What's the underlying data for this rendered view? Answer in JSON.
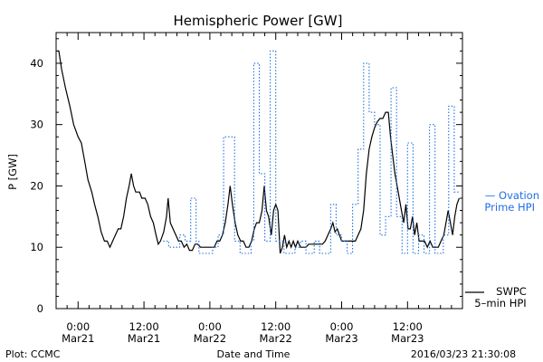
{
  "chart_data": {
    "type": "line",
    "title": "Hemispheric Power [GW]",
    "xlabel": "Date and Time",
    "ylabel": "P [GW]",
    "ylim": [
      0,
      45
    ],
    "yticks": [
      0,
      10,
      20,
      30,
      40
    ],
    "xlim": [
      -4,
      70
    ],
    "xaxis_unit": "hours since 2016-03-21 00:00 UT",
    "xticks": [
      {
        "x": 0,
        "line1": "0:00",
        "line2": "Mar21"
      },
      {
        "x": 12,
        "line1": "12:00",
        "line2": "Mar21"
      },
      {
        "x": 24,
        "line1": "0:00",
        "line2": "Mar22"
      },
      {
        "x": 36,
        "line1": "12:00",
        "line2": "Mar22"
      },
      {
        "x": 48,
        "line1": "0:00",
        "line2": "Mar23"
      },
      {
        "x": 60,
        "line1": "12:00",
        "line2": "Mar23"
      }
    ],
    "series": [
      {
        "name": "SWPC 5-min HPI",
        "color": "#000000",
        "style": "solid",
        "points": [
          [
            -3.8,
            42
          ],
          [
            -3.5,
            42
          ],
          [
            -3,
            39
          ],
          [
            -2.3,
            36
          ],
          [
            -1.5,
            33
          ],
          [
            -0.8,
            30
          ],
          [
            0,
            28
          ],
          [
            0.6,
            27
          ],
          [
            1.2,
            24
          ],
          [
            1.8,
            21
          ],
          [
            2.5,
            19
          ],
          [
            3,
            17
          ],
          [
            3.6,
            15
          ],
          [
            4.2,
            12.5
          ],
          [
            4.8,
            11
          ],
          [
            5.3,
            11
          ],
          [
            5.8,
            10
          ],
          [
            6.3,
            11
          ],
          [
            6.8,
            12
          ],
          [
            7.3,
            13
          ],
          [
            7.8,
            13
          ],
          [
            8.3,
            15
          ],
          [
            8.8,
            18
          ],
          [
            9.3,
            20
          ],
          [
            9.7,
            22
          ],
          [
            10.1,
            20
          ],
          [
            10.5,
            19
          ],
          [
            11.2,
            19
          ],
          [
            11.6,
            18
          ],
          [
            12.2,
            18
          ],
          [
            12.7,
            17
          ],
          [
            13.2,
            15
          ],
          [
            13.7,
            14
          ],
          [
            14.2,
            12
          ],
          [
            14.6,
            10.5
          ],
          [
            15,
            11
          ],
          [
            15.6,
            12.5
          ],
          [
            16.1,
            15
          ],
          [
            16.4,
            18
          ],
          [
            16.8,
            14
          ],
          [
            17.3,
            13
          ],
          [
            17.8,
            12
          ],
          [
            18.3,
            11
          ],
          [
            18.8,
            11
          ],
          [
            19.3,
            10
          ],
          [
            19.8,
            10.5
          ],
          [
            20.3,
            9.5
          ],
          [
            20.8,
            9.5
          ],
          [
            21.3,
            10.5
          ],
          [
            21.8,
            10.5
          ],
          [
            22.3,
            10
          ],
          [
            22.8,
            10
          ],
          [
            23.3,
            10
          ],
          [
            23.8,
            10
          ],
          [
            24.3,
            10
          ],
          [
            24.8,
            10
          ],
          [
            25.3,
            11
          ],
          [
            25.8,
            11
          ],
          [
            26.3,
            12
          ],
          [
            26.8,
            14
          ],
          [
            27.3,
            17
          ],
          [
            27.7,
            20
          ],
          [
            28.1,
            17
          ],
          [
            28.6,
            14
          ],
          [
            29.1,
            12
          ],
          [
            29.6,
            11
          ],
          [
            30.1,
            11
          ],
          [
            30.6,
            10
          ],
          [
            31.1,
            10
          ],
          [
            31.6,
            11
          ],
          [
            32.1,
            13
          ],
          [
            32.5,
            14
          ],
          [
            33,
            14
          ],
          [
            33.5,
            16
          ],
          [
            33.9,
            20
          ],
          [
            34.3,
            16
          ],
          [
            34.7,
            15
          ],
          [
            35.2,
            12
          ],
          [
            35.6,
            16
          ],
          [
            36,
            17
          ],
          [
            36.4,
            16
          ],
          [
            36.8,
            9
          ],
          [
            37.2,
            10
          ],
          [
            37.6,
            12
          ],
          [
            38,
            10
          ],
          [
            38.4,
            11
          ],
          [
            38.8,
            10
          ],
          [
            39.2,
            11
          ],
          [
            39.6,
            10
          ],
          [
            40,
            11
          ],
          [
            40.5,
            10
          ],
          [
            41,
            10
          ],
          [
            41.5,
            10
          ],
          [
            42,
            10.5
          ],
          [
            42.5,
            10.5
          ],
          [
            43,
            10.5
          ],
          [
            43.5,
            10.5
          ],
          [
            44,
            10.5
          ],
          [
            44.5,
            10.5
          ],
          [
            45,
            11
          ],
          [
            45.5,
            12
          ],
          [
            46,
            13
          ],
          [
            46.4,
            14
          ],
          [
            46.8,
            12.5
          ],
          [
            47.2,
            13
          ],
          [
            47.6,
            12
          ],
          [
            48,
            11
          ],
          [
            48.5,
            11
          ],
          [
            49,
            11
          ],
          [
            49.5,
            11
          ],
          [
            50,
            11
          ],
          [
            50.5,
            11
          ],
          [
            51,
            12
          ],
          [
            51.5,
            13
          ],
          [
            52,
            16
          ],
          [
            52.5,
            22
          ],
          [
            53,
            26
          ],
          [
            53.5,
            28
          ],
          [
            54,
            29.5
          ],
          [
            54.5,
            30.5
          ],
          [
            55,
            31
          ],
          [
            55.5,
            31
          ],
          [
            56,
            32
          ],
          [
            56.5,
            32
          ],
          [
            56.9,
            28
          ],
          [
            57.3,
            25
          ],
          [
            57.7,
            22
          ],
          [
            58.1,
            20
          ],
          [
            58.5,
            18
          ],
          [
            58.9,
            16
          ],
          [
            59.3,
            14
          ],
          [
            59.7,
            17
          ],
          [
            60.1,
            13
          ],
          [
            60.5,
            13
          ],
          [
            60.9,
            15
          ],
          [
            61.3,
            12
          ],
          [
            61.7,
            14
          ],
          [
            62.1,
            11
          ],
          [
            62.6,
            11
          ],
          [
            63.1,
            11
          ],
          [
            63.6,
            10
          ],
          [
            64.1,
            11
          ],
          [
            64.6,
            10
          ],
          [
            65.1,
            10
          ],
          [
            65.6,
            10
          ],
          [
            66.1,
            11
          ],
          [
            66.6,
            12
          ],
          [
            67,
            14
          ],
          [
            67.4,
            16
          ],
          [
            67.8,
            14
          ],
          [
            68.2,
            12
          ],
          [
            68.6,
            15
          ],
          [
            69,
            17
          ],
          [
            69.4,
            18
          ]
        ]
      },
      {
        "name": "Ovation Prime HPI",
        "color": "#1f6fe0",
        "style": "dotted-step",
        "points": [
          [
            15.5,
            11
          ],
          [
            16.5,
            11
          ],
          [
            16.5,
            10
          ],
          [
            18.5,
            10
          ],
          [
            18.5,
            12
          ],
          [
            19.5,
            12
          ],
          [
            19.5,
            11
          ],
          [
            20.5,
            11
          ],
          [
            20.5,
            18
          ],
          [
            21.5,
            18
          ],
          [
            21.5,
            11
          ],
          [
            22,
            11
          ],
          [
            22,
            9
          ],
          [
            24.5,
            9
          ],
          [
            24.5,
            10
          ],
          [
            25.5,
            10
          ],
          [
            25.5,
            12
          ],
          [
            26.5,
            12
          ],
          [
            26.5,
            28
          ],
          [
            28.5,
            28
          ],
          [
            28.5,
            11
          ],
          [
            29.5,
            11
          ],
          [
            29.5,
            9
          ],
          [
            31.5,
            9
          ],
          [
            31.5,
            11
          ],
          [
            32,
            11
          ],
          [
            32,
            40
          ],
          [
            33,
            40
          ],
          [
            33,
            22
          ],
          [
            34,
            22
          ],
          [
            34,
            11
          ],
          [
            35,
            11
          ],
          [
            35,
            42
          ],
          [
            36,
            42
          ],
          [
            36,
            11
          ],
          [
            37.5,
            11
          ],
          [
            37.5,
            9
          ],
          [
            39.5,
            9
          ],
          [
            39.5,
            10
          ],
          [
            40.5,
            10
          ],
          [
            40.5,
            11
          ],
          [
            41.5,
            11
          ],
          [
            41.5,
            9
          ],
          [
            43,
            9
          ],
          [
            43,
            11
          ],
          [
            44,
            11
          ],
          [
            44,
            9
          ],
          [
            46,
            9
          ],
          [
            46,
            17
          ],
          [
            47,
            17
          ],
          [
            47,
            12
          ],
          [
            48,
            12
          ],
          [
            48,
            11
          ],
          [
            49,
            11
          ],
          [
            49,
            9
          ],
          [
            50,
            9
          ],
          [
            50,
            17
          ],
          [
            51,
            17
          ],
          [
            51,
            26
          ],
          [
            52,
            26
          ],
          [
            52,
            40
          ],
          [
            53,
            40
          ],
          [
            53,
            32
          ],
          [
            54,
            32
          ],
          [
            54,
            30
          ],
          [
            55,
            30
          ],
          [
            55,
            12
          ],
          [
            56,
            12
          ],
          [
            56,
            15
          ],
          [
            57,
            15
          ],
          [
            57,
            36
          ],
          [
            58,
            36
          ],
          [
            58,
            15
          ],
          [
            59,
            15
          ],
          [
            59,
            9
          ],
          [
            60,
            9
          ],
          [
            60,
            27
          ],
          [
            61,
            27
          ],
          [
            61,
            9
          ],
          [
            62,
            9
          ],
          [
            62,
            12
          ],
          [
            63,
            12
          ],
          [
            63,
            9
          ],
          [
            64,
            9
          ],
          [
            64,
            30
          ],
          [
            65,
            30
          ],
          [
            65,
            9
          ],
          [
            66.5,
            9
          ],
          [
            66.5,
            12
          ],
          [
            67.5,
            12
          ],
          [
            67.5,
            33
          ],
          [
            68.5,
            33
          ],
          [
            68.5,
            19
          ],
          [
            69.5,
            19
          ]
        ]
      }
    ]
  },
  "legend": {
    "ovation_line1": "— Ovation",
    "ovation_line2": "Prime HPI",
    "swpc_line1": "SWPC",
    "swpc_line2": "5–min HPI"
  },
  "footer": {
    "left": "Plot: CCMC",
    "center": "Date and Time",
    "right": "2016/03/23 21:30:08"
  }
}
